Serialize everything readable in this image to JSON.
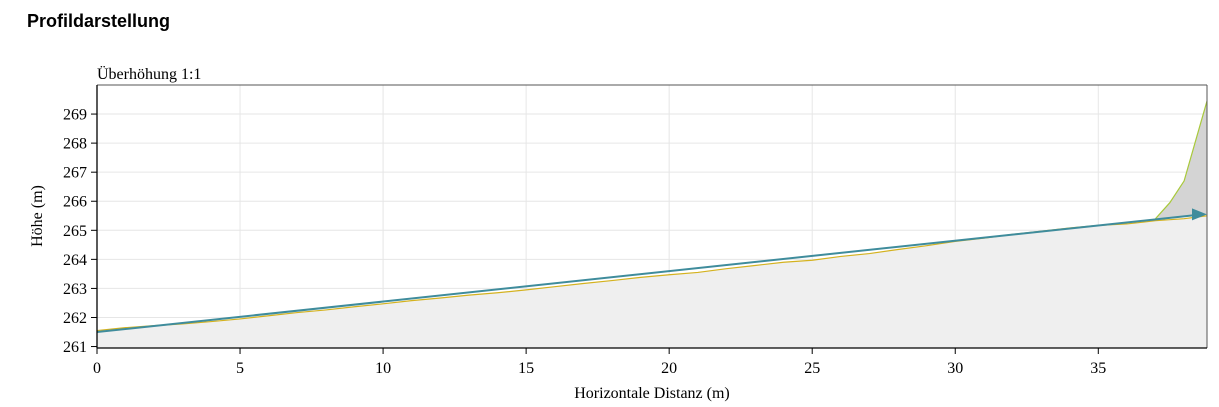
{
  "page": {
    "title": "Profildarstellung"
  },
  "chart_data": {
    "type": "area",
    "subtitle": "Überhöhung 1:1",
    "xlabel": "Horizontale Distanz (m)",
    "ylabel": "Höhe (m)",
    "xlim": [
      0,
      38.8
    ],
    "ylim": [
      260.95,
      270.0
    ],
    "x_ticks": [
      0,
      5,
      10,
      15,
      20,
      25,
      30,
      35
    ],
    "y_ticks": [
      261,
      262,
      263,
      264,
      265,
      266,
      267,
      268,
      269
    ],
    "grid": true,
    "series": [
      {
        "role": "terrain",
        "color": "#d4b21f",
        "x": [
          0,
          1,
          2,
          3,
          4,
          5,
          6,
          7,
          8,
          9,
          10,
          11,
          12,
          13,
          14,
          15,
          16,
          17,
          18,
          19,
          20,
          21,
          22,
          23,
          24,
          25,
          26,
          27,
          28,
          29,
          30,
          31,
          32,
          33,
          34,
          35,
          36,
          37,
          38,
          38.8
        ],
        "y": [
          261.55,
          261.65,
          261.72,
          261.78,
          261.86,
          261.95,
          262.06,
          262.17,
          262.26,
          262.37,
          262.47,
          262.58,
          262.67,
          262.77,
          262.85,
          262.95,
          263.06,
          263.17,
          263.27,
          263.38,
          263.47,
          263.55,
          263.68,
          263.79,
          263.9,
          263.97,
          264.1,
          264.2,
          264.34,
          264.47,
          264.62,
          264.73,
          264.86,
          264.97,
          265.08,
          265.17,
          265.22,
          265.33,
          265.4,
          265.5
        ]
      },
      {
        "role": "surface",
        "color": "#a8c93a",
        "x": [
          37.0,
          37.5,
          38.0,
          38.8
        ],
        "y": [
          265.4,
          265.95,
          266.7,
          269.45
        ]
      },
      {
        "role": "profile-line",
        "color": "#3f8c9c",
        "x": [
          0,
          38.8
        ],
        "y": [
          261.5,
          265.55
        ]
      }
    ]
  }
}
